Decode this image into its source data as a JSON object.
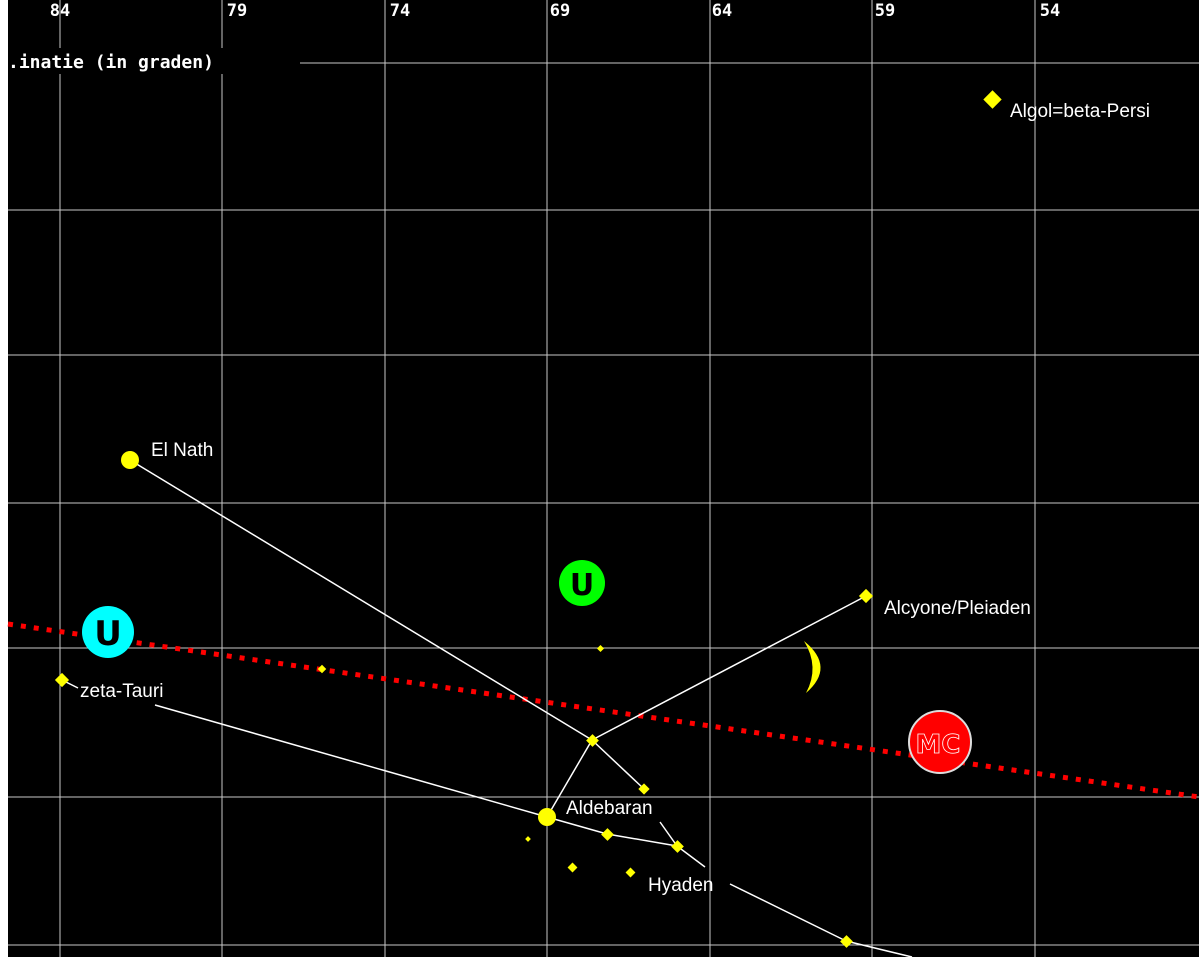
{
  "chart_data": {
    "type": "scatter",
    "title": "",
    "xlabel": "",
    "ylabel": "",
    "axis_title": ".inatie (in graden)",
    "grid": true,
    "x_ticks": [
      "84",
      "79",
      "74",
      "69",
      "64",
      "59",
      "54"
    ],
    "colors": {
      "background": "#000000",
      "grid": "#c8c8c8",
      "star": "#ffff00",
      "line": "#ffffff",
      "ecliptic": "#ff0000",
      "uranus": "#00ffff",
      "venus": "#00ff00",
      "mars": "#ff0000",
      "moon": "#ffff00"
    },
    "stars": [
      {
        "label": "Algol=beta-Persi"
      },
      {
        "label": "El Nath"
      },
      {
        "label": "Alcyone/Pleiaden"
      },
      {
        "label": "zeta-Tauri"
      },
      {
        "label": "Aldebaran"
      },
      {
        "label": "Hyaden"
      }
    ],
    "planets": [
      {
        "name": "uranus",
        "glyph": "U"
      },
      {
        "name": "venus",
        "glyph": "U"
      },
      {
        "name": "mars",
        "glyph": "MC"
      },
      {
        "name": "moon",
        "glyph": ""
      }
    ]
  }
}
